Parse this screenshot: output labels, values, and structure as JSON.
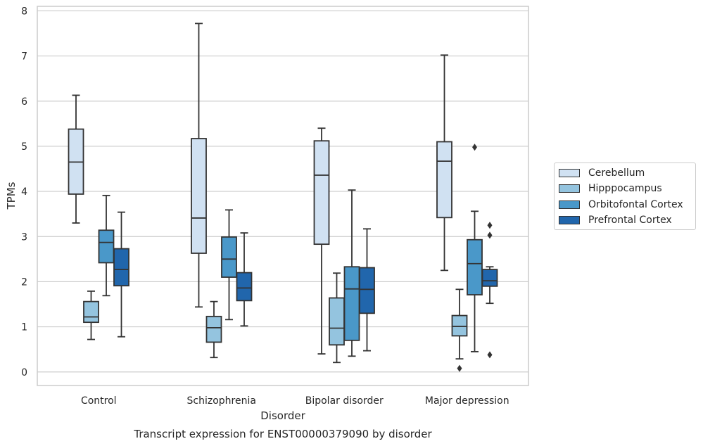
{
  "chart_data": {
    "type": "box",
    "title": "Transcript expression for ENST00000379090 by disorder",
    "xlabel": "Disorder",
    "ylabel": "TPMs",
    "ylim": [
      -0.3,
      8.1
    ],
    "yticks": [
      0,
      1,
      2,
      3,
      4,
      5,
      6,
      7,
      8
    ],
    "grid": "horizontal",
    "legend_position": "right",
    "categories": [
      "Control",
      "Schizophrenia",
      "Bipolar disorder",
      "Major depression"
    ],
    "series": [
      {
        "name": "Cerebellum",
        "color": "#d0e1f2",
        "boxes": [
          {
            "whislo": 3.3,
            "q1": 3.94,
            "med": 4.65,
            "q3": 5.38,
            "whishi": 6.13,
            "fliers": []
          },
          {
            "whislo": 1.44,
            "q1": 2.63,
            "med": 3.41,
            "q3": 5.17,
            "whishi": 7.72,
            "fliers": []
          },
          {
            "whislo": 0.4,
            "q1": 2.83,
            "med": 4.36,
            "q3": 5.12,
            "whishi": 5.4,
            "fliers": []
          },
          {
            "whislo": 2.25,
            "q1": 3.42,
            "med": 4.67,
            "q3": 5.1,
            "whishi": 7.02,
            "fliers": []
          }
        ]
      },
      {
        "name": "Hipppocampus",
        "color": "#94c4df",
        "boxes": [
          {
            "whislo": 0.72,
            "q1": 1.1,
            "med": 1.22,
            "q3": 1.56,
            "whishi": 1.79,
            "fliers": []
          },
          {
            "whislo": 0.32,
            "q1": 0.66,
            "med": 0.98,
            "q3": 1.23,
            "whishi": 1.56,
            "fliers": []
          },
          {
            "whislo": 0.21,
            "q1": 0.6,
            "med": 0.97,
            "q3": 1.64,
            "whishi": 2.19,
            "fliers": []
          },
          {
            "whislo": 0.29,
            "q1": 0.8,
            "med": 1.01,
            "q3": 1.25,
            "whishi": 1.83,
            "fliers": [
              0.08
            ]
          }
        ]
      },
      {
        "name": "Orbitofontal Cortex",
        "color": "#4a98c9",
        "boxes": [
          {
            "whislo": 1.69,
            "q1": 2.42,
            "med": 2.87,
            "q3": 3.14,
            "whishi": 3.91,
            "fliers": []
          },
          {
            "whislo": 1.16,
            "q1": 2.1,
            "med": 2.5,
            "q3": 2.99,
            "whishi": 3.59,
            "fliers": []
          },
          {
            "whislo": 0.35,
            "q1": 0.7,
            "med": 1.84,
            "q3": 2.33,
            "whishi": 4.03,
            "fliers": []
          },
          {
            "whislo": 0.45,
            "q1": 1.71,
            "med": 2.4,
            "q3": 2.93,
            "whishi": 3.56,
            "fliers": [
              4.98
            ]
          }
        ]
      },
      {
        "name": "Prefrontal Cortex",
        "color": "#2166ac",
        "boxes": [
          {
            "whislo": 0.78,
            "q1": 1.91,
            "med": 2.27,
            "q3": 2.73,
            "whishi": 3.54,
            "fliers": []
          },
          {
            "whislo": 1.02,
            "q1": 1.58,
            "med": 1.86,
            "q3": 2.2,
            "whishi": 3.08,
            "fliers": []
          },
          {
            "whislo": 0.47,
            "q1": 1.3,
            "med": 1.83,
            "q3": 2.31,
            "whishi": 3.17,
            "fliers": []
          },
          {
            "whislo": 1.52,
            "q1": 1.9,
            "med": 2.02,
            "q3": 2.27,
            "whishi": 2.33,
            "fliers": [
              3.25,
              3.03,
              0.38
            ]
          }
        ]
      }
    ]
  }
}
